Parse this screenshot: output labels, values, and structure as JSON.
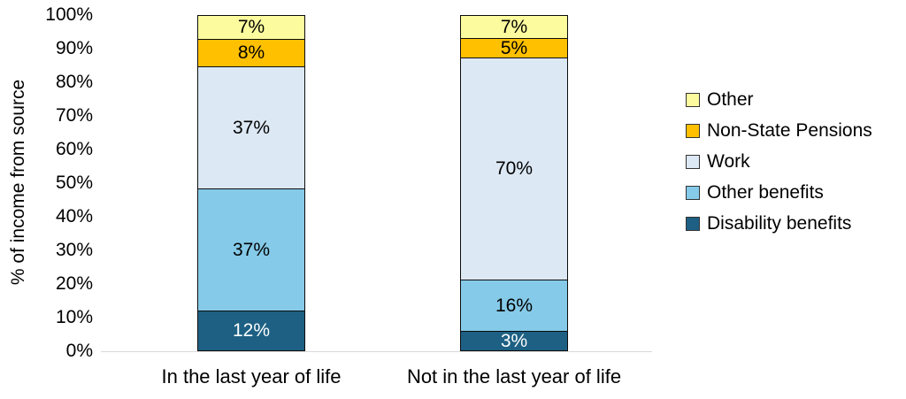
{
  "chart_data": {
    "type": "bar",
    "stacked": true,
    "title": "",
    "xlabel": "",
    "ylabel": "% of income from source",
    "ylim": [
      0,
      100
    ],
    "ytick_step": 10,
    "yticks": [
      "0%",
      "10%",
      "20%",
      "30%",
      "40%",
      "50%",
      "60%",
      "70%",
      "80%",
      "90%",
      "100%"
    ],
    "grid": false,
    "categories": [
      "In the last year of life",
      "Not in the last year of life"
    ],
    "series": [
      {
        "name": "Disability benefits",
        "color": "#1D6083",
        "label_color": "#FFFFFF",
        "values": [
          12,
          3
        ],
        "labels": [
          "12%",
          "3%"
        ]
      },
      {
        "name": "Other benefits",
        "color": "#85CAE8",
        "label_color": "#000000",
        "values": [
          37,
          16
        ],
        "labels": [
          "37%",
          "16%"
        ]
      },
      {
        "name": "Work",
        "color": "#DCE8F4",
        "label_color": "#000000",
        "values": [
          37,
          70
        ],
        "labels": [
          "37%",
          "70%"
        ]
      },
      {
        "name": "Non-State Pensions",
        "color": "#FFC000",
        "label_color": "#000000",
        "values": [
          8,
          5
        ],
        "labels": [
          "8%",
          "5%"
        ]
      },
      {
        "name": "Other",
        "color": "#FCFC9E",
        "label_color": "#000000",
        "values": [
          7,
          7
        ],
        "labels": [
          "7%",
          "7%"
        ]
      }
    ],
    "legend": {
      "position": "right",
      "entries": [
        "Other",
        "Non-State Pensions",
        "Work",
        "Other benefits",
        "Disability benefits"
      ]
    }
  },
  "colors": {
    "baseline": "#D9D9D9",
    "segment_border": "#0D0D0D",
    "background": "#FFFFFF"
  }
}
